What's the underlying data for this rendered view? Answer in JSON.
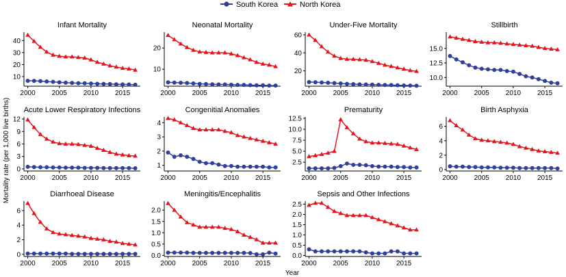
{
  "legend": {
    "south_label": "South Korea",
    "north_label": "North Korea",
    "south_color": "#2e3f9c",
    "north_color": "#e3141b"
  },
  "figure": {
    "ylabel": "Mortality rate (per 1,000 live births)",
    "xlabel": "Year"
  },
  "chart_data": [
    {
      "type": "line",
      "title": "Infant Mortality",
      "x": [
        2000,
        2001,
        2002,
        2003,
        2004,
        2005,
        2006,
        2007,
        2008,
        2009,
        2010,
        2011,
        2012,
        2013,
        2014,
        2015,
        2016,
        2017
      ],
      "ylim": [
        2,
        47
      ],
      "yticks": [
        10,
        20,
        30,
        40
      ],
      "xticks": [
        2000,
        2005,
        2010,
        2015
      ],
      "series": [
        {
          "name": "South Korea",
          "values": [
            6.5,
            6.4,
            6.2,
            5.9,
            5.6,
            5.2,
            4.9,
            4.7,
            4.5,
            4.4,
            4.2,
            4.0,
            3.9,
            3.8,
            3.6,
            3.5,
            3.4,
            3.2
          ]
        },
        {
          "name": "North Korea",
          "values": [
            44.5,
            39.5,
            34.5,
            30.5,
            28,
            27,
            26.5,
            26.5,
            26,
            25.5,
            24,
            22,
            20.5,
            19,
            18,
            17,
            16.5,
            15.5
          ]
        }
      ]
    },
    {
      "type": "line",
      "title": "Neonatal Mortality",
      "x": [
        2000,
        2001,
        2002,
        2003,
        2004,
        2005,
        2006,
        2007,
        2008,
        2009,
        2010,
        2011,
        2012,
        2013,
        2014,
        2015,
        2016,
        2017
      ],
      "ylim": [
        2,
        27.5
      ],
      "yticks": [
        10,
        20
      ],
      "xticks": [
        2000,
        2005,
        2010,
        2015
      ],
      "series": [
        {
          "name": "South Korea",
          "values": [
            3.8,
            3.7,
            3.6,
            3.5,
            3.3,
            3.1,
            3.0,
            2.9,
            2.8,
            2.8,
            2.7,
            2.6,
            2.6,
            2.5,
            2.4,
            2.4,
            2.3,
            2.3
          ]
        },
        {
          "name": "North Korea",
          "values": [
            26,
            24,
            22,
            20.3,
            19,
            18.2,
            18,
            17.8,
            17.8,
            17.8,
            17.3,
            16.5,
            15.5,
            14.5,
            13.3,
            12.5,
            12,
            11.3
          ]
        }
      ]
    },
    {
      "type": "line",
      "title": "Under-Five Mortality",
      "x": [
        2000,
        2001,
        2002,
        2003,
        2004,
        2005,
        2006,
        2007,
        2008,
        2009,
        2010,
        2011,
        2012,
        2013,
        2014,
        2015,
        2016,
        2017
      ],
      "ylim": [
        3,
        63
      ],
      "yticks": [
        20,
        40,
        60
      ],
      "xticks": [
        2000,
        2005,
        2010,
        2015
      ],
      "series": [
        {
          "name": "South Korea",
          "values": [
            7.6,
            7.4,
            7.1,
            6.8,
            6.4,
            6.0,
            5.6,
            5.3,
            5.0,
            4.9,
            4.7,
            4.5,
            4.3,
            4.2,
            4.0,
            3.8,
            3.7,
            3.5
          ]
        },
        {
          "name": "North Korea",
          "values": [
            60,
            54,
            47,
            41,
            36.5,
            34,
            33,
            33,
            32.5,
            32,
            30.5,
            28.5,
            26.5,
            25,
            23.5,
            22,
            20.5,
            19.5
          ]
        }
      ]
    },
    {
      "type": "line",
      "title": "Stillbirth",
      "x": [
        2000,
        2001,
        2002,
        2003,
        2004,
        2005,
        2006,
        2007,
        2008,
        2009,
        2010,
        2011,
        2012,
        2013,
        2014,
        2015,
        2016,
        2017
      ],
      "ylim": [
        8.5,
        17.8
      ],
      "yticks": [
        10.0,
        12.5,
        15.0
      ],
      "xticks": [
        2000,
        2005,
        2010,
        2015
      ],
      "series": [
        {
          "name": "South Korea",
          "values": [
            13.7,
            13.1,
            12.6,
            12.1,
            11.7,
            11.5,
            11.4,
            11.3,
            11.3,
            11.1,
            11.0,
            10.6,
            10.2,
            10.0,
            9.7,
            9.4,
            9.1,
            9.0
          ]
        },
        {
          "name": "North Korea",
          "values": [
            17.0,
            16.8,
            16.6,
            16.4,
            16.2,
            16.1,
            16.0,
            16.0,
            15.9,
            15.8,
            15.7,
            15.6,
            15.5,
            15.4,
            15.2,
            15.0,
            14.9,
            14.8
          ]
        }
      ]
    },
    {
      "type": "line",
      "title": "Acute Lower Respiratory Infections",
      "x": [
        2000,
        2001,
        2002,
        2003,
        2004,
        2005,
        2006,
        2007,
        2008,
        2009,
        2010,
        2011,
        2012,
        2013,
        2014,
        2015,
        2016,
        2017
      ],
      "ylim": [
        -0.5,
        12.5
      ],
      "yticks": [
        0,
        3,
        6,
        9,
        12
      ],
      "xticks": [
        2000,
        2005,
        2010,
        2015
      ],
      "series": [
        {
          "name": "South Korea",
          "values": [
            0.5,
            0.45,
            0.4,
            0.4,
            0.35,
            0.35,
            0.3,
            0.3,
            0.3,
            0.25,
            0.25,
            0.25,
            0.2,
            0.2,
            0.2,
            0.2,
            0.2,
            0.15
          ]
        },
        {
          "name": "North Korea",
          "values": [
            11.8,
            10.0,
            8.3,
            7.2,
            6.5,
            6.1,
            6.0,
            6.0,
            5.9,
            5.7,
            5.5,
            5.0,
            4.5,
            4.0,
            3.6,
            3.4,
            3.2,
            3.1
          ]
        }
      ]
    },
    {
      "type": "line",
      "title": "Congenitial Anomalies",
      "x": [
        2000,
        2001,
        2002,
        2003,
        2004,
        2005,
        2006,
        2007,
        2008,
        2009,
        2010,
        2011,
        2012,
        2013,
        2014,
        2015,
        2016,
        2017
      ],
      "ylim": [
        0.6,
        4.4
      ],
      "yticks": [
        1,
        2,
        3,
        4
      ],
      "xticks": [
        2000,
        2005,
        2010,
        2015
      ],
      "series": [
        {
          "name": "South Korea",
          "values": [
            1.9,
            1.6,
            1.7,
            1.6,
            1.45,
            1.25,
            1.15,
            1.15,
            1.05,
            0.95,
            0.95,
            0.9,
            0.9,
            0.9,
            0.9,
            0.9,
            0.85,
            0.85
          ]
        },
        {
          "name": "North Korea",
          "values": [
            4.3,
            4.2,
            4.0,
            3.8,
            3.6,
            3.5,
            3.5,
            3.5,
            3.5,
            3.4,
            3.3,
            3.1,
            3.0,
            2.9,
            2.8,
            2.7,
            2.6,
            2.5
          ]
        }
      ]
    },
    {
      "type": "line",
      "title": "Prematurity",
      "x": [
        2000,
        2001,
        2002,
        2003,
        2004,
        2005,
        2006,
        2007,
        2008,
        2009,
        2010,
        2011,
        2012,
        2013,
        2014,
        2015,
        2016,
        2017
      ],
      "ylim": [
        0.5,
        12.8
      ],
      "yticks": [
        2.5,
        5.0,
        7.5,
        10.0,
        12.5
      ],
      "xticks": [
        2000,
        2005,
        2010,
        2015
      ],
      "series": [
        {
          "name": "South Korea",
          "values": [
            1.1,
            1.1,
            1.1,
            1.1,
            1.2,
            1.6,
            2.2,
            1.9,
            1.9,
            1.8,
            1.6,
            1.5,
            1.5,
            1.5,
            1.4,
            1.4,
            1.3,
            1.3
          ]
        },
        {
          "name": "North Korea",
          "values": [
            3.8,
            4.0,
            4.3,
            4.6,
            5.0,
            12.2,
            10.4,
            9.0,
            7.8,
            7.2,
            6.9,
            6.9,
            6.8,
            6.7,
            6.6,
            6.2,
            5.8,
            5.4
          ]
        }
      ]
    },
    {
      "type": "line",
      "title": "Birth Asphyxia",
      "x": [
        2000,
        2001,
        2002,
        2003,
        2004,
        2005,
        2006,
        2007,
        2008,
        2009,
        2010,
        2011,
        2012,
        2013,
        2014,
        2015,
        2016,
        2017
      ],
      "ylim": [
        -0.2,
        7.3
      ],
      "yticks": [
        0,
        2,
        4,
        6
      ],
      "xticks": [
        2000,
        2005,
        2010,
        2015
      ],
      "series": [
        {
          "name": "South Korea",
          "values": [
            0.45,
            0.4,
            0.4,
            0.35,
            0.35,
            0.3,
            0.3,
            0.3,
            0.25,
            0.25,
            0.25,
            0.2,
            0.2,
            0.2,
            0.2,
            0.2,
            0.2,
            0.15
          ]
        },
        {
          "name": "North Korea",
          "values": [
            6.8,
            6.1,
            5.5,
            4.8,
            4.3,
            4.1,
            4.0,
            3.9,
            3.8,
            3.7,
            3.5,
            3.2,
            3.0,
            2.8,
            2.6,
            2.5,
            2.4,
            2.3
          ]
        }
      ]
    },
    {
      "type": "line",
      "title": "Diarrhoeal Disease",
      "x": [
        2000,
        2001,
        2002,
        2003,
        2004,
        2005,
        2006,
        2007,
        2008,
        2009,
        2010,
        2011,
        2012,
        2013,
        2014,
        2015,
        2016,
        2017
      ],
      "ylim": [
        -0.3,
        7.3
      ],
      "yticks": [
        0,
        2,
        4,
        6
      ],
      "xticks": [
        2000,
        2005,
        2010,
        2015
      ],
      "series": [
        {
          "name": "South Korea",
          "values": [
            0.1,
            0.1,
            0.1,
            0.1,
            0.1,
            0.1,
            0.1,
            0.05,
            0.05,
            0.05,
            0.05,
            0.05,
            0.05,
            0.05,
            0.05,
            0.05,
            0.05,
            0.05
          ]
        },
        {
          "name": "North Korea",
          "values": [
            7.0,
            5.6,
            4.4,
            3.5,
            3.0,
            2.8,
            2.7,
            2.6,
            2.5,
            2.4,
            2.2,
            2.1,
            2.0,
            1.8,
            1.7,
            1.5,
            1.4,
            1.3
          ]
        }
      ]
    },
    {
      "type": "line",
      "title": "Meningitis/Encephalitis",
      "x": [
        2000,
        2001,
        2002,
        2003,
        2004,
        2005,
        2006,
        2007,
        2008,
        2009,
        2010,
        2011,
        2012,
        2013,
        2014,
        2015,
        2016,
        2017
      ],
      "ylim": [
        -0.05,
        2.4
      ],
      "yticks": [
        0.0,
        0.5,
        1.0,
        1.5,
        2.0
      ],
      "xticks": [
        2000,
        2005,
        2010,
        2015
      ],
      "series": [
        {
          "name": "South Korea",
          "values": [
            0.12,
            0.12,
            0.12,
            0.12,
            0.11,
            0.11,
            0.11,
            0.11,
            0.11,
            0.11,
            0.11,
            0.11,
            0.11,
            0.1,
            0.05,
            0.05,
            0.12,
            0.08
          ]
        },
        {
          "name": "North Korea",
          "values": [
            2.3,
            2.0,
            1.7,
            1.45,
            1.35,
            1.25,
            1.25,
            1.25,
            1.25,
            1.2,
            1.15,
            1.05,
            0.9,
            0.8,
            0.7,
            0.55,
            0.55,
            0.55
          ]
        }
      ]
    },
    {
      "type": "line",
      "title": "Sepsis and Other Infections",
      "x": [
        2000,
        2001,
        2002,
        2003,
        2004,
        2005,
        2006,
        2007,
        2008,
        2009,
        2010,
        2011,
        2012,
        2013,
        2014,
        2015,
        2016,
        2017
      ],
      "ylim": [
        -0.05,
        2.65
      ],
      "yticks": [
        0.0,
        0.5,
        1.0,
        1.5,
        2.0,
        2.5
      ],
      "xticks": [
        2000,
        2005,
        2010,
        2015
      ],
      "series": [
        {
          "name": "South Korea",
          "values": [
            0.3,
            0.2,
            0.2,
            0.2,
            0.2,
            0.2,
            0.2,
            0.2,
            0.2,
            0.15,
            0.1,
            0.1,
            0.1,
            0.2,
            0.2,
            0.1,
            0.1,
            0.1
          ]
        },
        {
          "name": "North Korea",
          "values": [
            2.45,
            2.55,
            2.55,
            2.35,
            2.15,
            2.05,
            1.95,
            1.95,
            1.95,
            1.95,
            1.85,
            1.75,
            1.65,
            1.55,
            1.45,
            1.35,
            1.25,
            1.25
          ]
        }
      ]
    }
  ]
}
